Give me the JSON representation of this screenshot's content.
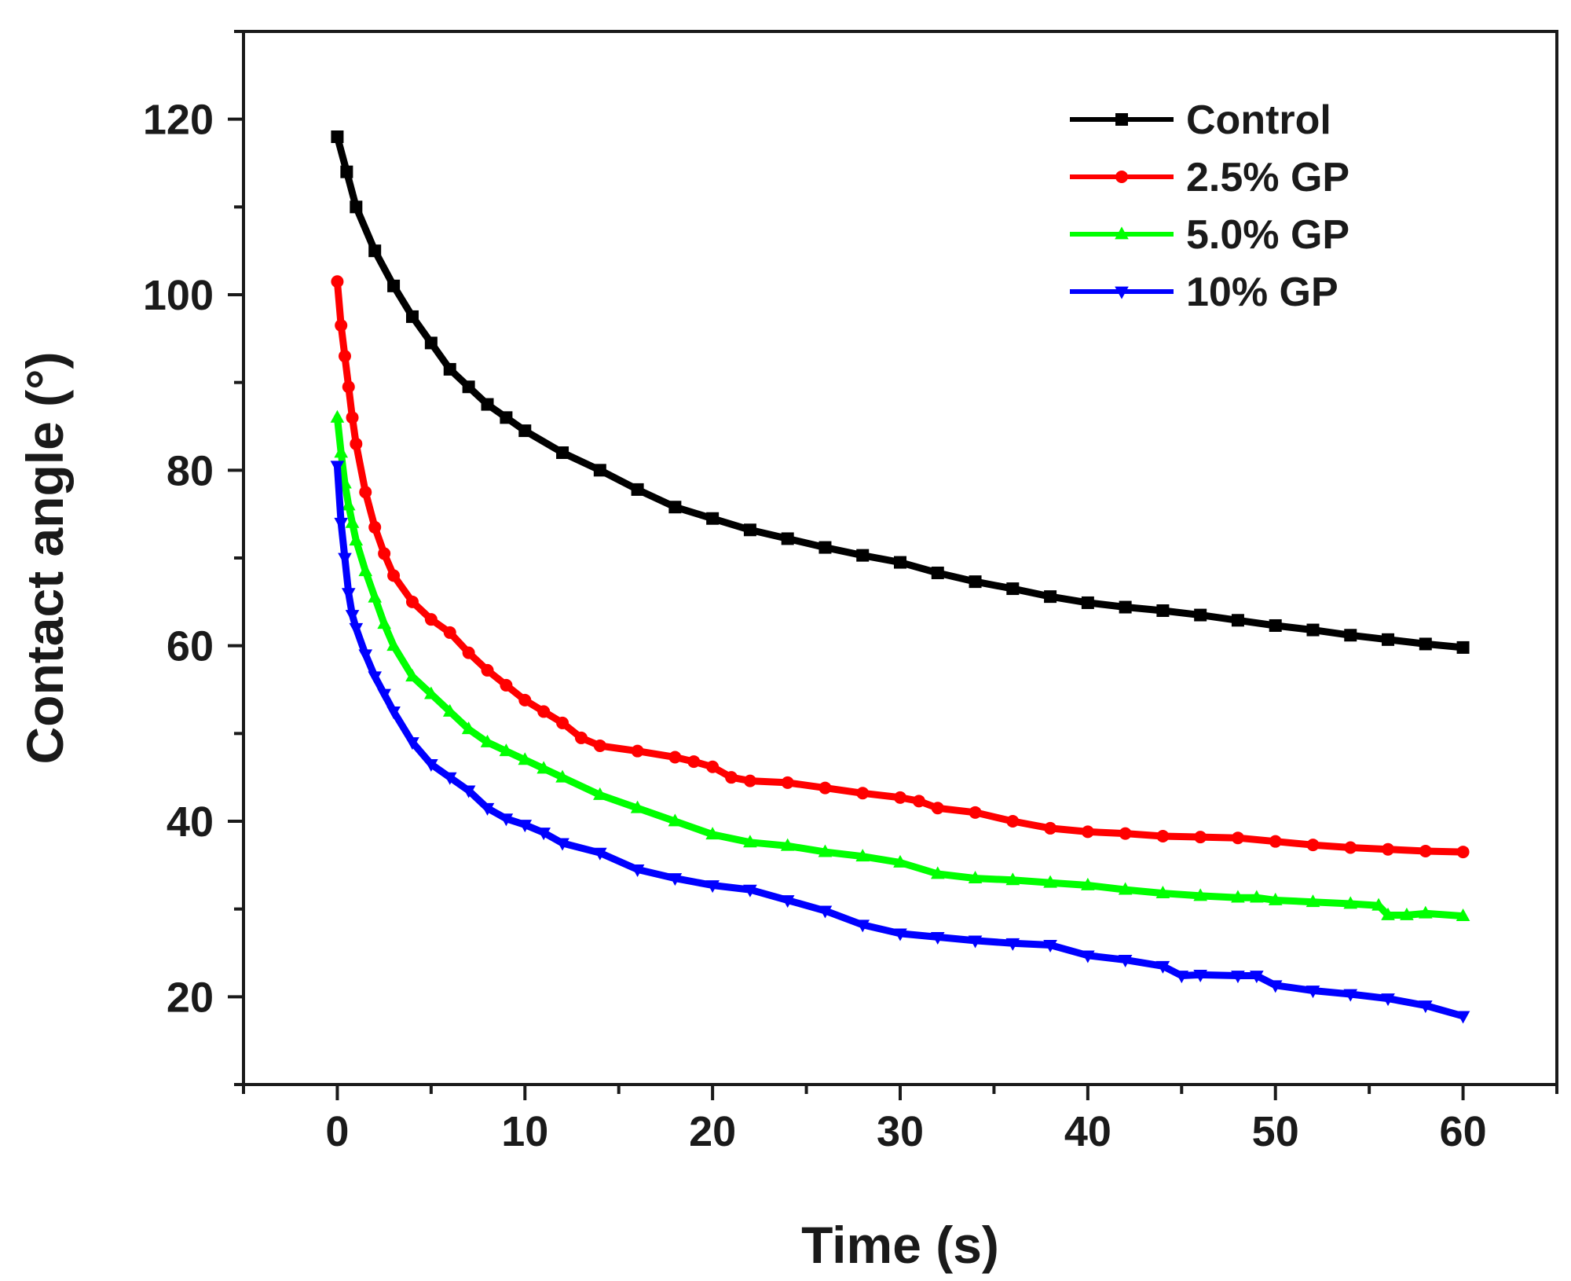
{
  "chart_data": {
    "type": "line",
    "xlabel": "Time (s)",
    "ylabel": "Contact angle (°)",
    "xlim": [
      -5,
      65
    ],
    "ylim": [
      10,
      130
    ],
    "x_ticks": [
      0,
      10,
      20,
      30,
      40,
      50,
      60
    ],
    "y_ticks": [
      20,
      40,
      60,
      80,
      100,
      120
    ],
    "grid": false,
    "legend_position": "top-right",
    "series": [
      {
        "name": "Control",
        "color": "#000000",
        "marker": "square",
        "x": [
          0,
          0.5,
          1,
          2,
          3,
          4,
          5,
          6,
          7,
          8,
          9,
          10,
          12,
          14,
          16,
          18,
          20,
          22,
          24,
          26,
          28,
          30,
          32,
          34,
          36,
          38,
          40,
          42,
          44,
          46,
          48,
          50,
          52,
          54,
          56,
          58,
          60
        ],
        "y": [
          118,
          114,
          110,
          105,
          101,
          97.5,
          94.5,
          91.5,
          89.5,
          87.5,
          86,
          84.5,
          82,
          80,
          77.8,
          75.8,
          74.5,
          73.2,
          72.2,
          71.2,
          70.3,
          69.5,
          68.3,
          67.3,
          66.5,
          65.6,
          64.9,
          64.4,
          64,
          63.5,
          62.9,
          62.3,
          61.8,
          61.2,
          60.7,
          60.2,
          59.8
        ]
      },
      {
        "name": "2.5% GP",
        "color": "#ff0000",
        "marker": "circle",
        "x": [
          0,
          0.2,
          0.4,
          0.6,
          0.8,
          1,
          1.5,
          2,
          2.5,
          3,
          4,
          5,
          6,
          7,
          8,
          9,
          10,
          11,
          12,
          13,
          14,
          16,
          18,
          19,
          20,
          21,
          22,
          24,
          26,
          28,
          30,
          31,
          32,
          34,
          36,
          38,
          40,
          42,
          44,
          46,
          48,
          50,
          52,
          54,
          56,
          58,
          60
        ],
        "y": [
          101.5,
          96.5,
          93,
          89.5,
          86,
          83,
          77.5,
          73.5,
          70.5,
          68,
          65,
          63,
          61.5,
          59.2,
          57.2,
          55.5,
          53.8,
          52.5,
          51.2,
          49.5,
          48.6,
          48,
          47.3,
          46.8,
          46.2,
          45,
          44.6,
          44.4,
          43.8,
          43.2,
          42.7,
          42.3,
          41.5,
          41,
          40,
          39.2,
          38.8,
          38.6,
          38.3,
          38.2,
          38.1,
          37.7,
          37.3,
          37,
          36.8,
          36.6,
          36.5
        ]
      },
      {
        "name": "5.0% GP",
        "color": "#00ff00",
        "marker": "triangle-up",
        "x": [
          0,
          0.2,
          0.4,
          0.6,
          0.8,
          1,
          1.5,
          2,
          2.5,
          3,
          4,
          5,
          6,
          7,
          8,
          9,
          10,
          11,
          12,
          14,
          16,
          18,
          20,
          22,
          24,
          26,
          28,
          30,
          32,
          34,
          36,
          38,
          40,
          42,
          44,
          46,
          48,
          49,
          50,
          52,
          54,
          55.5,
          56,
          57,
          58,
          60
        ],
        "y": [
          86,
          82,
          78.5,
          76,
          74,
          72,
          68.5,
          65.5,
          62.5,
          60,
          56.5,
          54.5,
          52.5,
          50.5,
          49,
          48,
          47,
          46,
          45,
          43,
          41.5,
          40,
          38.5,
          37.6,
          37.2,
          36.5,
          36,
          35.3,
          34,
          33.5,
          33.3,
          33,
          32.7,
          32.2,
          31.8,
          31.5,
          31.3,
          31.3,
          31,
          30.8,
          30.6,
          30.4,
          29.3,
          29.3,
          29.5,
          29.2
        ]
      },
      {
        "name": "10% GP",
        "color": "#0000ff",
        "marker": "triangle-down",
        "x": [
          0,
          0.2,
          0.4,
          0.6,
          0.8,
          1,
          1.5,
          2,
          2.5,
          3,
          4,
          5,
          6,
          7,
          8,
          9,
          10,
          11,
          12,
          14,
          16,
          18,
          20,
          22,
          24,
          26,
          28,
          30,
          32,
          34,
          36,
          38,
          40,
          42,
          44,
          45,
          46,
          48,
          49,
          50,
          52,
          54,
          56,
          58,
          60
        ],
        "y": [
          80.5,
          74,
          70,
          66,
          63.5,
          62,
          59,
          56.5,
          54.5,
          52.5,
          49,
          46.5,
          45,
          43.5,
          41.5,
          40.3,
          39.6,
          38.7,
          37.5,
          36.4,
          34.5,
          33.5,
          32.7,
          32.2,
          31,
          29.8,
          28.2,
          27.2,
          26.8,
          26.4,
          26.1,
          25.9,
          24.7,
          24.2,
          23.5,
          22.4,
          22.5,
          22.4,
          22.4,
          21.3,
          20.7,
          20.3,
          19.8,
          19,
          17.8
        ]
      }
    ]
  }
}
